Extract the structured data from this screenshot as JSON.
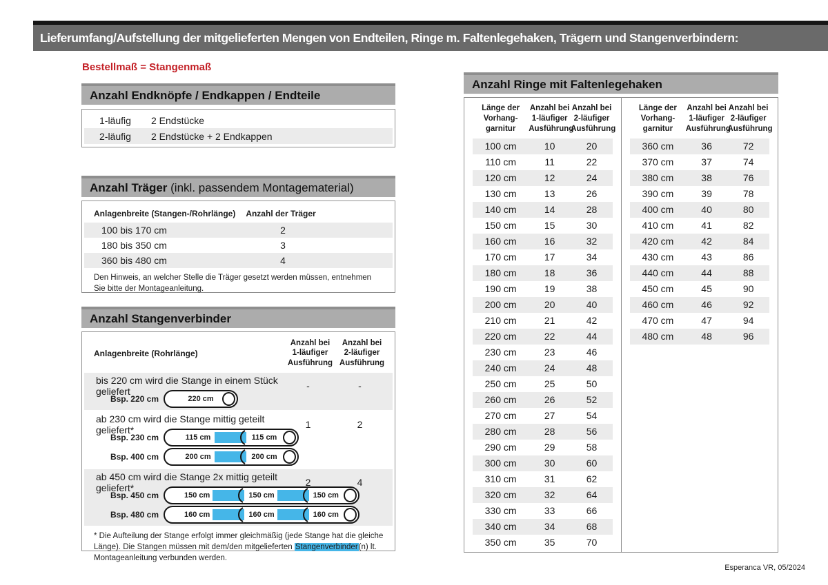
{
  "banner": {
    "title": "Lieferumfang/Aufstellung der mitgelieferten Mengen von Endteilen, Ringe m. Faltenlegehaken, Trägern und Stangenverbindern:"
  },
  "subtitle": "Bestellmaß = Stangenmaß",
  "colors": {
    "accent_red": "#c32026",
    "highlight_blue": "#45b6e8",
    "banner_gray": "#6a6a6a",
    "section_header_gray": "#acacac",
    "row_shade_gray": "#ebebeb"
  },
  "endteile": {
    "header": "Anzahl Endknöpfe / Endkappen / Endteile",
    "rows": [
      {
        "type": "1-läufig",
        "value": "2 Endstücke"
      },
      {
        "type": "2-läufig",
        "value": "2 Endstücke + 2 Endkappen"
      }
    ]
  },
  "traeger": {
    "header_bold": "Anzahl Träger",
    "header_rest": " (inkl. passendem Montagematerial)",
    "col1": "Anlagenbreite (Stangen-/Rohrlänge)",
    "col2": "Anzahl der Träger",
    "rows": [
      {
        "range": "100 bis 170 cm",
        "count": "2"
      },
      {
        "range": "180 bis 350 cm",
        "count": "3"
      },
      {
        "range": "360 bis 480 cm",
        "count": "4"
      }
    ],
    "note": "Den Hinweis, an welcher Stelle die Träger gesetzt werden müssen, entnehmen Sie bitte der Montageanleitung."
  },
  "verbinder": {
    "header": "Anzahl Stangenverbinder",
    "col1": "Anlagenbreite (Rohrlänge)",
    "col2_lines": [
      "Anzahl bei",
      "1-läufiger",
      "Ausführung"
    ],
    "col3_lines": [
      "Anzahl bei",
      "2-läufiger",
      "Ausführung"
    ],
    "groups": [
      {
        "text": "bis 220 cm wird die Stange in einem Stück geliefert",
        "count1": "-",
        "count2": "-",
        "rods": [
          {
            "label": "Bsp. 220 cm",
            "segments": [
              "220 cm"
            ]
          }
        ]
      },
      {
        "text": "ab 230 cm wird die Stange mittig geteilt geliefert*",
        "count1": "1",
        "count2": "2",
        "rods": [
          {
            "label": "Bsp. 230 cm",
            "segments": [
              "115 cm",
              "115 cm"
            ]
          },
          {
            "label": "Bsp. 400 cm",
            "segments": [
              "200 cm",
              "200 cm"
            ]
          }
        ]
      },
      {
        "text": "ab 450 cm wird die Stange 2x mittig geteilt geliefert*",
        "count1": "2",
        "count2": "4",
        "rods": [
          {
            "label": "Bsp. 450 cm",
            "segments": [
              "150 cm",
              "150 cm",
              "150 cm"
            ]
          },
          {
            "label": "Bsp. 480 cm",
            "segments": [
              "160 cm",
              "160 cm",
              "160 cm"
            ]
          }
        ]
      }
    ],
    "footnote_pre": "* Die Aufteilung der Stange erfolgt immer gleichmäßig (jede Stange hat die gleiche Länge). Die Stangen müssen mit dem/den mitgelieferten ",
    "footnote_highlight": "Stangenverbinder",
    "footnote_post": "(n) lt. Montageanleitung verbunden werden."
  },
  "ringe": {
    "header": "Anzahl Ringe mit Faltenlegehaken",
    "col_headers": [
      [
        "Länge der",
        "Vorhang-",
        "garnitur"
      ],
      [
        "Anzahl bei",
        "1-läufiger",
        "Ausführung"
      ],
      [
        "Anzahl bei",
        "2-läufiger",
        "Ausführung"
      ]
    ],
    "table_left": [
      [
        "100 cm",
        "10",
        "20"
      ],
      [
        "110 cm",
        "11",
        "22"
      ],
      [
        "120 cm",
        "12",
        "24"
      ],
      [
        "130 cm",
        "13",
        "26"
      ],
      [
        "140 cm",
        "14",
        "28"
      ],
      [
        "150 cm",
        "15",
        "30"
      ],
      [
        "160 cm",
        "16",
        "32"
      ],
      [
        "170 cm",
        "17",
        "34"
      ],
      [
        "180 cm",
        "18",
        "36"
      ],
      [
        "190 cm",
        "19",
        "38"
      ],
      [
        "200 cm",
        "20",
        "40"
      ],
      [
        "210 cm",
        "21",
        "42"
      ],
      [
        "220 cm",
        "22",
        "44"
      ],
      [
        "230 cm",
        "23",
        "46"
      ],
      [
        "240 cm",
        "24",
        "48"
      ],
      [
        "250 cm",
        "25",
        "50"
      ],
      [
        "260 cm",
        "26",
        "52"
      ],
      [
        "270 cm",
        "27",
        "54"
      ],
      [
        "280 cm",
        "28",
        "56"
      ],
      [
        "290 cm",
        "29",
        "58"
      ],
      [
        "300 cm",
        "30",
        "60"
      ],
      [
        "310 cm",
        "31",
        "62"
      ],
      [
        "320 cm",
        "32",
        "64"
      ],
      [
        "330 cm",
        "33",
        "66"
      ],
      [
        "340 cm",
        "34",
        "68"
      ],
      [
        "350 cm",
        "35",
        "70"
      ]
    ],
    "table_right": [
      [
        "360 cm",
        "36",
        "72"
      ],
      [
        "370 cm",
        "37",
        "74"
      ],
      [
        "380 cm",
        "38",
        "76"
      ],
      [
        "390 cm",
        "39",
        "78"
      ],
      [
        "400 cm",
        "40",
        "80"
      ],
      [
        "410 cm",
        "41",
        "82"
      ],
      [
        "420 cm",
        "42",
        "84"
      ],
      [
        "430 cm",
        "43",
        "86"
      ],
      [
        "440 cm",
        "44",
        "88"
      ],
      [
        "450 cm",
        "45",
        "90"
      ],
      [
        "460 cm",
        "46",
        "92"
      ],
      [
        "470 cm",
        "47",
        "94"
      ],
      [
        "480 cm",
        "48",
        "96"
      ]
    ]
  },
  "footer": "Esperanca VR, 05/2024"
}
